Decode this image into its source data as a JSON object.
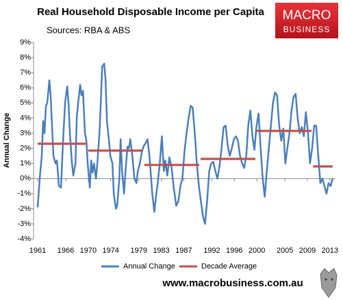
{
  "chart_data": {
    "type": "line",
    "title": "Real Household Disposable Income per Capita",
    "subtitle": "Sources: RBA & ABS",
    "logo": {
      "line1": "MACRO",
      "line2": "BUSINESS"
    },
    "footer": "www.macrobusiness.com.au",
    "y_label": "Annual Change",
    "xlim": [
      1961,
      2014
    ],
    "xticks": [
      1961,
      1966,
      1970,
      1974,
      1979,
      1983,
      1987,
      1992,
      1996,
      2000,
      2005,
      2009,
      2013
    ],
    "ylim": [
      -4,
      9
    ],
    "yticks": [
      {
        "value": -4,
        "label": "-4%"
      },
      {
        "value": -3,
        "label": "-3%"
      },
      {
        "value": -2,
        "label": "-2%"
      },
      {
        "value": -1,
        "label": "-1%"
      },
      {
        "value": 0,
        "label": "0%"
      },
      {
        "value": 1,
        "label": "1%"
      },
      {
        "value": 2,
        "label": "2%"
      },
      {
        "value": 3,
        "label": "3%"
      },
      {
        "value": 4,
        "label": "4%"
      },
      {
        "value": 5,
        "label": "5%"
      },
      {
        "value": 6,
        "label": "6%"
      },
      {
        "value": 7,
        "label": "7%"
      },
      {
        "value": 8,
        "label": "8%"
      },
      {
        "value": 9,
        "label": "9%"
      }
    ],
    "grid": false,
    "legend": "bottom",
    "series": [
      {
        "name": "Annual Change",
        "color": "#4a7ebb",
        "x": [
          1961.0,
          1961.37,
          1961.73,
          1961.98,
          1962.22,
          1962.47,
          1962.71,
          1963.08,
          1963.32,
          1963.56,
          1963.81,
          1964.17,
          1964.42,
          1964.79,
          1965.15,
          1965.52,
          1965.88,
          1966.25,
          1966.49,
          1966.74,
          1967.11,
          1967.35,
          1967.72,
          1967.96,
          1968.2,
          1968.57,
          1968.81,
          1969.06,
          1969.42,
          1969.67,
          1969.91,
          1970.28,
          1970.52,
          1970.77,
          1971.01,
          1971.38,
          1971.62,
          1971.99,
          1972.23,
          1972.48,
          1972.84,
          1973.09,
          1973.33,
          1973.7,
          1973.94,
          1974.31,
          1974.55,
          1974.92,
          1975.16,
          1975.53,
          1975.77,
          1976.02,
          1976.38,
          1976.63,
          1976.99,
          1977.24,
          1977.48,
          1977.85,
          1978.22,
          1978.58,
          1978.83,
          1979.19,
          1979.56,
          1979.93,
          1980.17,
          1980.54,
          1980.9,
          1981.39,
          1981.76,
          1982.12,
          1982.37,
          1982.73,
          1983.1,
          1983.47,
          1983.71,
          1984.08,
          1984.44,
          1984.81,
          1985.18,
          1985.66,
          1986.03,
          1986.4,
          1986.76,
          1987.13,
          1987.5,
          1987.86,
          1988.23,
          1988.59,
          1988.96,
          1989.33,
          1989.69,
          1990.06,
          1990.43,
          1990.79,
          1991.16,
          1991.53,
          1991.89,
          1992.26,
          1992.62,
          1992.99,
          1993.36,
          1993.72,
          1994.09,
          1994.46,
          1994.82,
          1995.19,
          1995.55,
          1995.92,
          1996.29,
          1996.65,
          1997.02,
          1997.39,
          1997.75,
          1998.12,
          1998.48,
          1998.85,
          1999.22,
          1999.58,
          1999.95,
          2000.32,
          2000.68,
          2001.05,
          2001.42,
          2001.78,
          2002.15,
          2002.51,
          2002.88,
          2003.25,
          2003.61,
          2003.98,
          2004.35,
          2004.71,
          2005.08,
          2005.44,
          2005.81,
          2006.18,
          2006.54,
          2006.91,
          2007.28,
          2007.64,
          2008.01,
          2008.37,
          2008.74,
          2009.11,
          2009.47,
          2009.84,
          2010.21,
          2010.57,
          2010.94,
          2011.31,
          2011.67,
          2012.04,
          2012.4,
          2012.77,
          2013.14,
          2013.5
        ],
        "values": [
          -1.9,
          0.0,
          1.5,
          3.8,
          3.0,
          4.8,
          5.0,
          6.5,
          5.5,
          3.5,
          1.5,
          1.0,
          1.2,
          -0.5,
          -0.6,
          2.5,
          5.0,
          6.1,
          5.0,
          3.0,
          1.0,
          0.2,
          1.0,
          4.0,
          5.0,
          6.2,
          5.5,
          5.8,
          3.0,
          2.5,
          1.0,
          -0.6,
          1.2,
          0.4,
          1.0,
          0.0,
          1.0,
          3.0,
          5.0,
          7.4,
          7.6,
          6.5,
          3.8,
          2.5,
          1.5,
          1.0,
          -1.0,
          -2.0,
          -1.8,
          0.0,
          2.6,
          0.5,
          -1.0,
          0.5,
          2.1,
          2.0,
          2.6,
          1.5,
          0.0,
          -0.3,
          0.5,
          1.0,
          1.8,
          2.2,
          2.3,
          2.6,
          1.5,
          -1.0,
          -2.2,
          -1.0,
          -0.3,
          1.0,
          2.8,
          0.5,
          1.2,
          0.2,
          1.4,
          0.8,
          -0.5,
          -1.8,
          -1.5,
          -0.5,
          0.0,
          1.8,
          3.0,
          4.0,
          4.8,
          4.7,
          3.0,
          1.0,
          -0.5,
          -1.5,
          -2.5,
          -3.0,
          -1.5,
          0.5,
          1.0,
          1.1,
          0.5,
          0.0,
          0.8,
          2.0,
          3.4,
          3.5,
          2.2,
          1.5,
          2.0,
          2.6,
          2.8,
          2.5,
          1.5,
          1.0,
          0.7,
          1.5,
          3.5,
          4.5,
          2.8,
          1.9,
          3.5,
          4.3,
          2.0,
          0.0,
          -1.2,
          0.5,
          2.0,
          3.5,
          5.0,
          5.7,
          5.5,
          3.5,
          2.5,
          3.3,
          1.0,
          2.0,
          3.0,
          4.5,
          5.4,
          5.6,
          4.0,
          3.0,
          3.4,
          2.8,
          4.4,
          3.0,
          1.0,
          2.0,
          3.5,
          3.5,
          1.5,
          -0.3,
          0.0,
          -0.5,
          -1.0,
          -0.3,
          -0.5,
          0.0
        ]
      },
      {
        "name": "Decade Average",
        "color": "#c0504d",
        "x": [
          1961,
          1969.75,
          null,
          1970,
          1979.75,
          null,
          1980,
          1989.75,
          null,
          1990,
          1999.75,
          null,
          2000,
          2009.75,
          null,
          2010,
          2013.5
        ],
        "values": [
          2.3,
          2.3,
          null,
          1.85,
          1.85,
          null,
          0.9,
          0.9,
          null,
          1.3,
          1.3,
          null,
          3.15,
          3.15,
          null,
          0.8,
          0.8
        ]
      }
    ]
  }
}
